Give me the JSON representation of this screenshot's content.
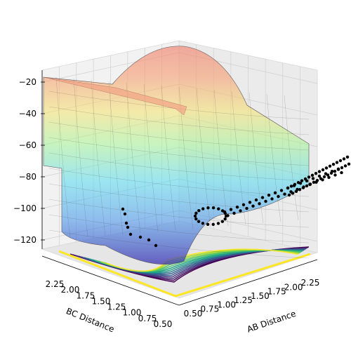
{
  "chart_data": {
    "type": "surface3d",
    "title": "",
    "xlabel": "AB Distance",
    "ylabel": "BC Distance",
    "zlabel": "",
    "x_ticks": [
      "0.50",
      "0.75",
      "1.00",
      "1.25",
      "1.50",
      "1.75",
      "2.00",
      "2.25"
    ],
    "y_ticks": [
      "0.50",
      "0.75",
      "1.00",
      "1.25",
      "1.50",
      "1.75",
      "2.00",
      "2.25"
    ],
    "z_ticks": [
      "−120",
      "−100",
      "−80",
      "−60",
      "−40",
      "−20"
    ],
    "x_range": [
      0.5,
      2.4
    ],
    "y_range": [
      0.5,
      2.4
    ],
    "z_range": [
      -135,
      -18
    ],
    "surface_colormap": "jet",
    "contour_colormap": "viridis",
    "marker_color": "#000000",
    "grid": true
  }
}
